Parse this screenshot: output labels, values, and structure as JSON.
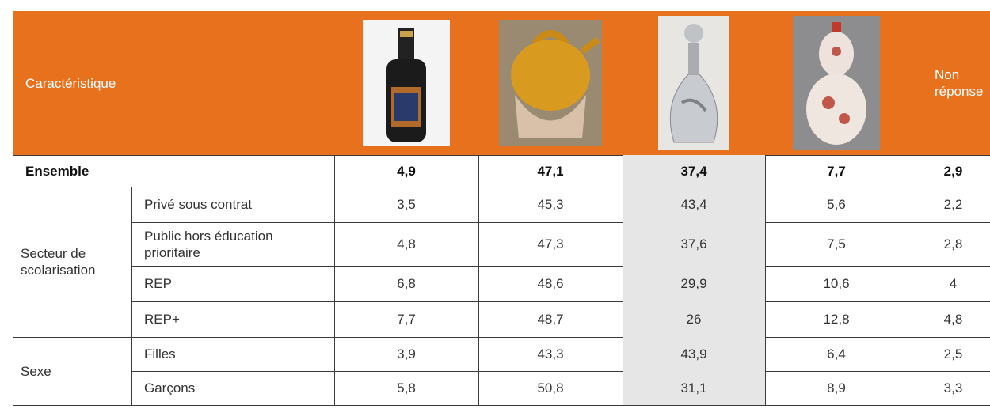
{
  "header": {
    "label": "Caractéristique",
    "non_reponse": "Non réponse"
  },
  "ensemble": {
    "label": "Ensemble",
    "values": [
      "4,9",
      "47,1",
      "37,4",
      "7,7",
      "2,9"
    ]
  },
  "groups": [
    {
      "label": "Secteur de scolarisation",
      "rows": [
        {
          "label": "Privé sous contrat",
          "values": [
            "3,5",
            "45,3",
            "43,4",
            "5,6",
            "2,2"
          ]
        },
        {
          "label": "Public hors éducation prioritaire",
          "values": [
            "4,8",
            "47,3",
            "37,6",
            "7,5",
            "2,8"
          ]
        },
        {
          "label": "REP",
          "values": [
            "6,8",
            "48,6",
            "29,9",
            "10,6",
            "4"
          ]
        },
        {
          "label": "REP+",
          "values": [
            "7,7",
            "48,7",
            "26",
            "12,8",
            "4,8"
          ]
        }
      ]
    },
    {
      "label": "Sexe",
      "rows": [
        {
          "label": "Filles",
          "values": [
            "3,9",
            "43,3",
            "43,9",
            "6,4",
            "2,5"
          ]
        },
        {
          "label": "Garçons",
          "values": [
            "5,8",
            "50,8",
            "31,1",
            "8,9",
            "3,3"
          ]
        }
      ]
    }
  ]
}
